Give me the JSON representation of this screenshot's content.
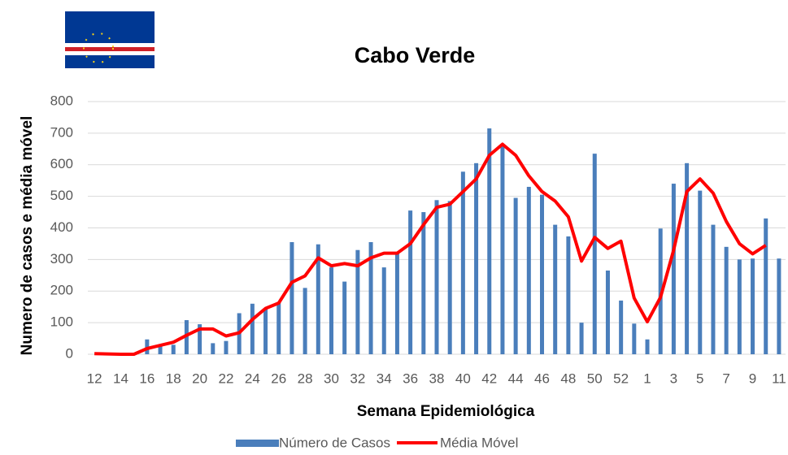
{
  "chart_data": {
    "type": "bar_line",
    "title": "Cabo Verde",
    "x_label": "Semana Epidemiológica",
    "y_label": "Numero de casos e média móvel",
    "categories": [
      "12",
      null,
      "14",
      null,
      "16",
      null,
      "18",
      null,
      "20",
      null,
      "22",
      null,
      "24",
      null,
      "26",
      null,
      "28",
      null,
      "30",
      null,
      "32",
      null,
      "34",
      null,
      "36",
      null,
      "38",
      null,
      "40",
      null,
      "42",
      null,
      "44",
      null,
      "46",
      null,
      "48",
      null,
      "50",
      null,
      "52",
      null,
      "1",
      null,
      "3",
      null,
      "5",
      null,
      "7",
      null,
      "9",
      null,
      "11"
    ],
    "series": [
      {
        "name": "Número de Casos",
        "type": "bar",
        "color": "#4a7ebb",
        "values": [
          0,
          0,
          0,
          0,
          47,
          25,
          30,
          108,
          95,
          35,
          42,
          130,
          160,
          145,
          165,
          355,
          210,
          348,
          275,
          230,
          330,
          355,
          275,
          320,
          455,
          450,
          488,
          485,
          578,
          605,
          715,
          660,
          495,
          530,
          505,
          410,
          373,
          100,
          635,
          265,
          170,
          97,
          47,
          398,
          540,
          605,
          518,
          410,
          340,
          300,
          303,
          430,
          303
        ]
      },
      {
        "name": "Média Móvel",
        "type": "line",
        "color": "#ff0000",
        "values": [
          2,
          1,
          0,
          0,
          18,
          28,
          38,
          60,
          80,
          80,
          58,
          68,
          110,
          145,
          162,
          228,
          248,
          305,
          280,
          287,
          280,
          305,
          320,
          320,
          350,
          410,
          465,
          475,
          515,
          555,
          630,
          665,
          630,
          565,
          515,
          485,
          435,
          295,
          370,
          335,
          358,
          178,
          103,
          180,
          330,
          515,
          555,
          510,
          420,
          350,
          318,
          345,
          null
        ]
      }
    ],
    "ylim": [
      0,
      800
    ],
    "yticks": [
      0,
      100,
      200,
      300,
      400,
      500,
      600,
      700,
      800
    ],
    "grid": true,
    "legend": "bottom"
  }
}
